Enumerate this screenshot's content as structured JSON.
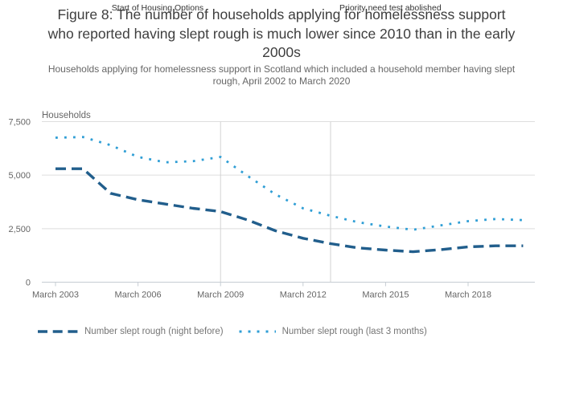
{
  "figure": {
    "title_lines": [
      "Figure 8: The number of households applying for homelessness support",
      "who reported having slept rough is much lower since 2010 than in the early",
      "2000s"
    ],
    "subtitle_lines": [
      "Households applying for homelessness support in Scotland which included a household member having slept",
      "rough, April 2002 to March 2020"
    ]
  },
  "chart_data": {
    "type": "line",
    "title": "Figure 8: The number of households applying for homelessness support who reported having slept rough is much lower since 2010 than in the early 2000s",
    "subtitle": "Households applying for homelessness support in Scotland which included a household member having slept rough, April 2002 to March 2020",
    "y_axis": {
      "title": "Households",
      "range": [
        0,
        7500
      ],
      "tick_values": [
        0,
        2500,
        5000,
        7500
      ],
      "tick_labels": [
        "0",
        "2,500",
        "5,000",
        "7,500"
      ],
      "gridlines": true
    },
    "x_axis": {
      "tick_labels": [
        "March 2003",
        "March 2006",
        "March 2009",
        "March 2012",
        "March 2015",
        "March 2018"
      ],
      "start_year": 2003
    },
    "x": [
      "March 2003",
      "March 2004",
      "March 2005",
      "March 2006",
      "March 2007",
      "March 2008",
      "March 2009",
      "March 2010",
      "March 2011",
      "March 2012",
      "March 2013",
      "March 2014",
      "March 2015",
      "March 2016",
      "March 2017",
      "March 2018",
      "March 2019",
      "March 2020"
    ],
    "series": [
      {
        "name": "Number slept rough (night before)",
        "style": "dashed",
        "color": "#215e8c",
        "values": [
          5300,
          5300,
          4150,
          3850,
          3650,
          3450,
          3300,
          2900,
          2400,
          2050,
          1800,
          1600,
          1500,
          1420,
          1520,
          1650,
          1700,
          1700
        ]
      },
      {
        "name": "Number slept rough (last 3 months)",
        "style": "dotted",
        "color": "#2f9ed5",
        "values": [
          6750,
          6780,
          6400,
          5850,
          5600,
          5650,
          5850,
          4950,
          4100,
          3450,
          3100,
          2800,
          2600,
          2450,
          2650,
          2850,
          2950,
          2900
        ]
      }
    ],
    "annotations": [
      {
        "label": "Start of Housing Options",
        "year": 2009
      },
      {
        "label": "Priority need test abolished",
        "year": 2013
      }
    ],
    "legend_position": "bottom",
    "colors": {
      "gridline": "#dedede",
      "annotation_line": "#d2d2d2",
      "axis_line": "#c6ccd3"
    }
  }
}
